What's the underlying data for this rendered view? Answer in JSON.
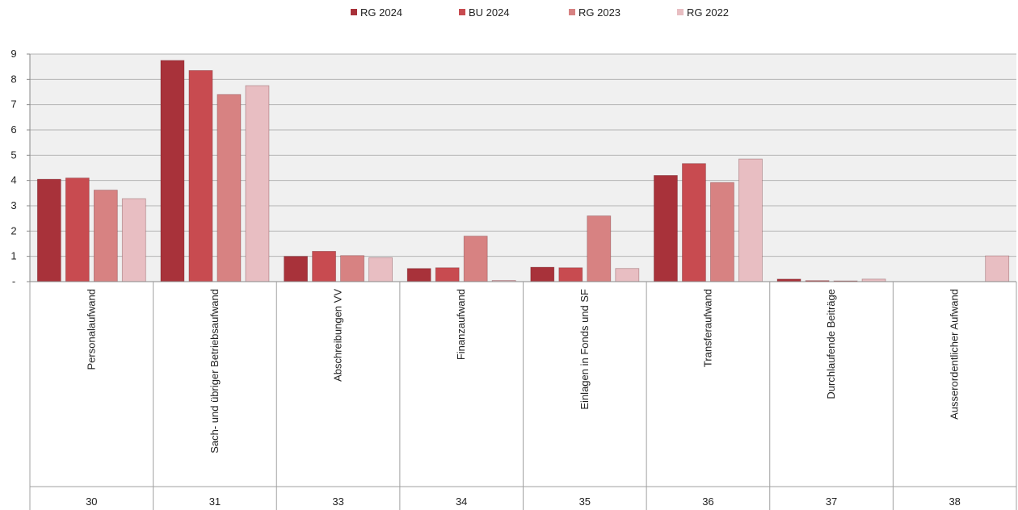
{
  "chart_data": {
    "type": "bar",
    "legend_position": "top",
    "grid": true,
    "ylim": [
      0,
      9
    ],
    "y_ticks": [
      "-",
      "1",
      "2",
      "3",
      "4",
      "5",
      "6",
      "7",
      "8",
      "9"
    ],
    "categories": [
      {
        "code": "30",
        "label": "Personalaufwand"
      },
      {
        "code": "31",
        "label": "Sach- und übriger Betriebsaufwand"
      },
      {
        "code": "33",
        "label": "Abschreibungen VV"
      },
      {
        "code": "34",
        "label": "Finanzaufwand"
      },
      {
        "code": "35",
        "label": "Einlagen in Fonds und SF"
      },
      {
        "code": "36",
        "label": "Transferaufwand"
      },
      {
        "code": "37",
        "label": "Durchlaufende Beiträge"
      },
      {
        "code": "38",
        "label": "Ausserordentlicher Aufwand"
      }
    ],
    "series": [
      {
        "name": "RG 2024",
        "color": "#a8323a",
        "values": [
          4.05,
          8.75,
          1.0,
          0.52,
          0.57,
          4.2,
          0.1,
          0
        ]
      },
      {
        "name": "BU 2024",
        "color": "#c84b50",
        "values": [
          4.1,
          8.35,
          1.2,
          0.55,
          0.55,
          4.67,
          0.04,
          0
        ]
      },
      {
        "name": "RG 2023",
        "color": "#d78282",
        "values": [
          3.62,
          7.4,
          1.03,
          1.8,
          2.6,
          3.92,
          0.03,
          0
        ]
      },
      {
        "name": "RG 2022",
        "color": "#e8bec2",
        "values": [
          3.28,
          7.75,
          0.95,
          0.05,
          0.52,
          4.85,
          0.1,
          1.02
        ]
      }
    ]
  }
}
